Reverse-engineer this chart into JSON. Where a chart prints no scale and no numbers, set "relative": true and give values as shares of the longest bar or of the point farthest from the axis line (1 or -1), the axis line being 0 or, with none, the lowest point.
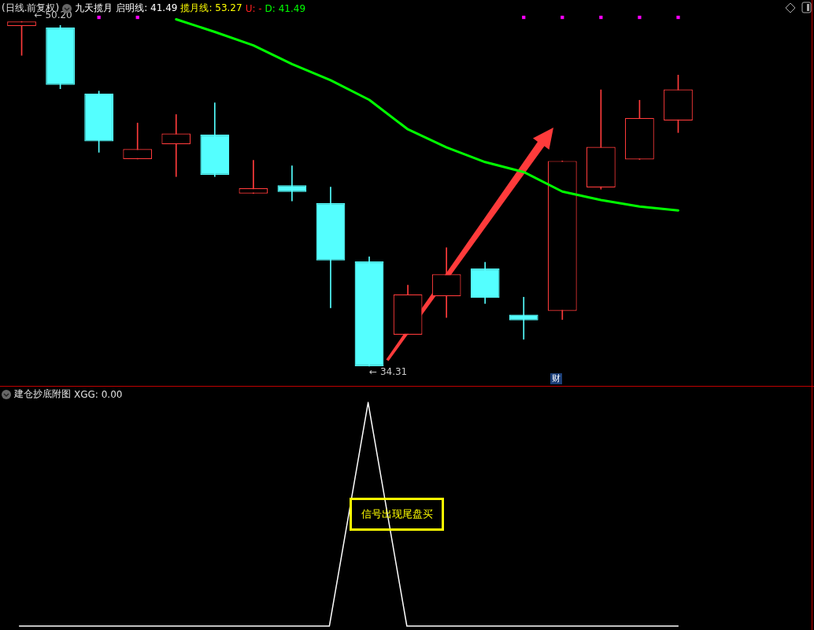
{
  "chart_data": [
    {
      "type": "candlestick",
      "title": "(日线.前复权)",
      "subtitle": "九天揽月",
      "categories": [
        null,
        null,
        null,
        null,
        null,
        null,
        null,
        null,
        null,
        null,
        null,
        null,
        null,
        null,
        null,
        null,
        null,
        null
      ],
      "ohlc": [
        [
          49.99,
          50.2,
          48.64,
          50.2
        ],
        [
          49.92,
          50.02,
          47.1,
          47.28
        ],
        [
          46.88,
          46.99,
          44.17,
          44.67
        ],
        [
          43.86,
          45.52,
          43.86,
          44.32
        ],
        [
          44.54,
          45.91,
          43.05,
          45.04
        ],
        [
          44.98,
          46.45,
          43.05,
          43.13
        ],
        [
          42.27,
          43.8,
          42.27,
          42.51
        ],
        [
          42.65,
          43.55,
          41.93,
          42.34
        ],
        [
          41.82,
          42.57,
          37.0,
          39.18
        ],
        [
          39.14,
          39.35,
          34.31,
          34.31
        ],
        [
          35.76,
          38.05,
          35.76,
          37.62
        ],
        [
          37.53,
          39.77,
          36.55,
          38.55
        ],
        [
          38.81,
          39.1,
          37.2,
          37.46
        ],
        [
          36.69,
          37.49,
          35.55,
          36.42
        ],
        [
          36.86,
          43.77,
          36.46,
          43.77
        ],
        [
          42.55,
          47.05,
          42.47,
          44.42
        ],
        [
          43.84,
          46.57,
          43.84,
          45.75
        ],
        [
          45.64,
          47.73,
          45.08,
          47.07
        ]
      ],
      "colors": [
        "#ff3b3b",
        "#54ffff",
        "#54ffff",
        "#ff3b3b",
        "#ff3b3b",
        "#54ffff",
        "#ff3b3b",
        "#54ffff",
        "#54ffff",
        "#54ffff",
        "#ff3b3b",
        "#ff3b3b",
        "#54ffff",
        "#54ffff",
        "#ff3b3b",
        "#ff3b3b",
        "#ff3b3b",
        "#ff3b3b"
      ],
      "series": [
        {
          "type": "line",
          "color": "#00ff00",
          "marker": "none",
          "values": [
            null,
            null,
            null,
            null,
            50.3,
            49.72,
            49.1,
            48.24,
            47.49,
            46.59,
            45.23,
            44.4,
            43.72,
            43.26,
            42.36,
            41.97,
            41.67,
            41.49
          ]
        },
        {
          "type": "scatter",
          "color": "#ff00ff",
          "marker": "square",
          "values": [
            null,
            null,
            50.39,
            50.39,
            null,
            null,
            null,
            null,
            null,
            null,
            null,
            null,
            null,
            50.39,
            50.39,
            50.39,
            50.39,
            50.39
          ]
        }
      ],
      "annotations": [
        "启明线: 41.49",
        "揽月线: 53.27",
        "U: -",
        "D: 41.49",
        "← 50.20",
        "← 34.31",
        "财"
      ]
    },
    {
      "type": "line",
      "title": "建仓抄底附图",
      "relative": true,
      "marker": "none",
      "categories": [
        null,
        null,
        null,
        null,
        null,
        null,
        null,
        null,
        null,
        null,
        null,
        null,
        null,
        null,
        null,
        null,
        null,
        null
      ],
      "series": [
        {
          "color": "#ffffff",
          "values": [
            0,
            0,
            0,
            0,
            0,
            0,
            0,
            0,
            0,
            1,
            0,
            0,
            0,
            0,
            0,
            0,
            0,
            0
          ]
        }
      ],
      "annotations": [
        "XGG: 0.00",
        "信号出现尾盘买"
      ]
    }
  ]
}
